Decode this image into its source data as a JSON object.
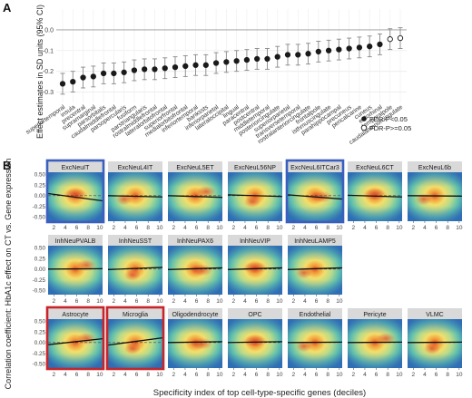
{
  "panel_a": {
    "label": "A",
    "ylabel": "Effect estimates in SD units (95% CI)",
    "legend": {
      "placement": "bottom-right",
      "items": [
        {
          "label": "FDR-P<0.05",
          "marker": "filled"
        },
        {
          "label": "FDR-P>=0.05",
          "marker": "open"
        }
      ]
    },
    "colors": {
      "point": "#1a1a1a",
      "error_bar": "#888888",
      "zero_line": "#999999"
    }
  },
  "panel_b": {
    "label": "B",
    "ylabel": "Correlation coefficient: HbA1c effect on CT vs. Gene expression",
    "xlabel": "Specificity index of top cell-type-specific genes (deciles)",
    "highlight_colors": {
      "blue": "#3a5fbf",
      "red": "#c8252a"
    },
    "x_ticks": [
      "2",
      "4",
      "6",
      "8",
      "10"
    ],
    "y_ticks": [
      "-0.50",
      "-0.25",
      "0.00",
      "0.25",
      "0.50"
    ]
  },
  "chart_data": [
    {
      "type": "scatter",
      "panel": "A",
      "ylabel": "Effect estimates in SD units (95% CI)",
      "ylim": [
        -0.35,
        0.1
      ],
      "y_ticks": [
        0.0,
        -0.1,
        -0.2,
        -0.3
      ],
      "y_tick_labels": [
        "0.0",
        "-0.1",
        "-0.2",
        "-0.3"
      ],
      "grid": true,
      "categories": [
        "superiortemporal",
        "insula",
        "precentral",
        "supramarginal",
        "parsorbitalis",
        "caudalmiddlefrontal",
        "parsopercularis",
        "fusiform",
        "parstriangularis",
        "rostralmiddlefrontal",
        "lateralorbitofrontal",
        "superiorfrontal",
        "medialorbitofrontal",
        "inferiortemporal",
        "bankssts",
        "inferiorparietal",
        "lateraloccipital",
        "lingual",
        "paracentral",
        "postcentral",
        "middletemporal",
        "posteriorcingulate",
        "superiorparietal",
        "transversetemporal",
        "rostralanteriorcingulate",
        "frontalpole",
        "isthmuscingulate",
        "parahippocampal",
        "precuneus",
        "pericalcarine",
        "cuneus",
        "entorhinal",
        "temporalpole",
        "caudalanteriorcingulate"
      ],
      "series": [
        {
          "name": "FDR-P<0.05",
          "values": [
            -0.26,
            -0.25,
            -0.23,
            -0.225,
            -0.21,
            -0.21,
            -0.205,
            -0.195,
            -0.19,
            -0.19,
            -0.185,
            -0.18,
            -0.175,
            -0.17,
            -0.17,
            -0.16,
            -0.155,
            -0.15,
            -0.145,
            -0.14,
            -0.14,
            -0.13,
            -0.12,
            -0.12,
            -0.115,
            -0.105,
            -0.1,
            -0.095,
            -0.09,
            -0.085,
            -0.08,
            -0.07,
            null,
            null
          ]
        },
        {
          "name": "FDR-P>=0.05",
          "values": [
            null,
            null,
            null,
            null,
            null,
            null,
            null,
            null,
            null,
            null,
            null,
            null,
            null,
            null,
            null,
            null,
            null,
            null,
            null,
            null,
            null,
            null,
            null,
            null,
            null,
            null,
            null,
            null,
            null,
            null,
            null,
            null,
            -0.045,
            -0.04
          ]
        }
      ],
      "ci_lower": [
        -0.31,
        -0.3,
        -0.28,
        -0.275,
        -0.26,
        -0.26,
        -0.255,
        -0.245,
        -0.24,
        -0.24,
        -0.235,
        -0.23,
        -0.225,
        -0.22,
        -0.22,
        -0.21,
        -0.205,
        -0.2,
        -0.195,
        -0.19,
        -0.19,
        -0.18,
        -0.17,
        -0.17,
        -0.165,
        -0.155,
        -0.15,
        -0.145,
        -0.14,
        -0.135,
        -0.13,
        -0.12,
        -0.095,
        -0.09
      ],
      "ci_upper": [
        -0.21,
        -0.2,
        -0.18,
        -0.175,
        -0.16,
        -0.16,
        -0.155,
        -0.145,
        -0.14,
        -0.14,
        -0.135,
        -0.13,
        -0.125,
        -0.12,
        -0.12,
        -0.11,
        -0.105,
        -0.1,
        -0.095,
        -0.09,
        -0.09,
        -0.08,
        -0.07,
        -0.07,
        -0.065,
        -0.055,
        -0.05,
        -0.045,
        -0.04,
        -0.035,
        -0.03,
        -0.02,
        0.005,
        0.01
      ]
    },
    {
      "type": "heatmap",
      "panel": "B",
      "xlabel": "Specificity index of top cell-type-specific genes (deciles)",
      "ylabel": "Correlation coefficient: HbA1c effect on CT vs. Gene expression",
      "xlim": [
        1,
        10.5
      ],
      "ylim": [
        -0.6,
        0.55
      ],
      "x_ticks": [
        2,
        4,
        6,
        8,
        10
      ],
      "y_ticks": [
        -0.5,
        -0.25,
        0.0,
        0.25,
        0.5
      ],
      "facets": [
        {
          "row": 0,
          "col": 0,
          "title": "ExcNeuIT",
          "highlight": "blue",
          "fit": [
            0.05,
            -0.12
          ]
        },
        {
          "row": 0,
          "col": 1,
          "title": "ExcNeuL4IT",
          "highlight": null,
          "fit": [
            0.0,
            -0.03
          ]
        },
        {
          "row": 0,
          "col": 2,
          "title": "ExcNeuL5ET",
          "highlight": null,
          "fit": [
            0.0,
            -0.04
          ]
        },
        {
          "row": 0,
          "col": 3,
          "title": "ExcNeuL56NP",
          "highlight": null,
          "fit": [
            0.02,
            -0.02
          ]
        },
        {
          "row": 0,
          "col": 4,
          "title": "ExcNeuL6ITCar3",
          "highlight": "blue",
          "fit": [
            0.02,
            -0.08
          ]
        },
        {
          "row": 0,
          "col": 5,
          "title": "ExcNeuL6CT",
          "highlight": null,
          "fit": [
            0.01,
            -0.03
          ]
        },
        {
          "row": 0,
          "col": 6,
          "title": "ExcNeuL6b",
          "highlight": null,
          "fit": [
            0.0,
            -0.01
          ]
        },
        {
          "row": 1,
          "col": 0,
          "title": "InhNeuPVALB",
          "highlight": null,
          "fit": [
            0.0,
            0.01
          ]
        },
        {
          "row": 1,
          "col": 1,
          "title": "InhNeuSST",
          "highlight": null,
          "fit": [
            -0.01,
            0.04
          ]
        },
        {
          "row": 1,
          "col": 2,
          "title": "InhNeuPAX6",
          "highlight": null,
          "fit": [
            -0.01,
            0.03
          ]
        },
        {
          "row": 1,
          "col": 3,
          "title": "InhNeuVIP",
          "highlight": null,
          "fit": [
            -0.01,
            0.03
          ]
        },
        {
          "row": 1,
          "col": 4,
          "title": "InhNeuLAMP5",
          "highlight": null,
          "fit": [
            -0.01,
            0.03
          ]
        },
        {
          "row": 2,
          "col": 0,
          "title": "Astrocyte",
          "highlight": "red",
          "fit": [
            -0.05,
            0.09
          ]
        },
        {
          "row": 2,
          "col": 1,
          "title": "Microglia",
          "highlight": "red",
          "fit": [
            -0.06,
            0.11
          ]
        },
        {
          "row": 2,
          "col": 2,
          "title": "Oligodendrocyte",
          "highlight": null,
          "fit": [
            0.0,
            0.02
          ]
        },
        {
          "row": 2,
          "col": 3,
          "title": "OPC",
          "highlight": null,
          "fit": [
            0.0,
            0.02
          ]
        },
        {
          "row": 2,
          "col": 4,
          "title": "Endothelial",
          "highlight": null,
          "fit": [
            0.0,
            0.01
          ]
        },
        {
          "row": 2,
          "col": 5,
          "title": "Pericyte",
          "highlight": null,
          "fit": [
            0.0,
            0.01
          ]
        },
        {
          "row": 2,
          "col": 6,
          "title": "VLMC",
          "highlight": null,
          "fit": [
            0.0,
            0.01
          ]
        }
      ]
    }
  ]
}
